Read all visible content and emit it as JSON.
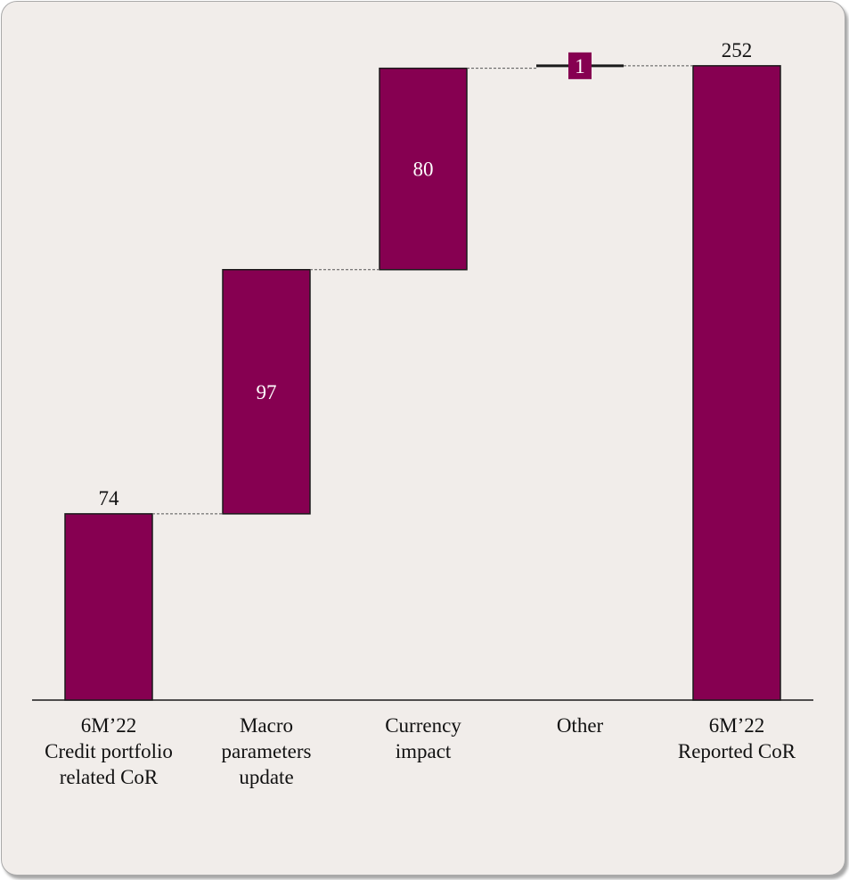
{
  "chart_data": {
    "type": "waterfall",
    "ylim": [
      0,
      268
    ],
    "grid": false,
    "colors": {
      "bar": "#860051",
      "background": "#f1edea",
      "connector": "#555555"
    },
    "items": [
      {
        "category_lines": [
          "6M’22",
          "Credit portfolio",
          "related CoR"
        ],
        "value": 74,
        "kind": "total",
        "label": "74",
        "label_position": "above"
      },
      {
        "category_lines": [
          "Macro",
          "parameters",
          "update"
        ],
        "value": 97,
        "kind": "delta",
        "label": "97",
        "label_position": "inside"
      },
      {
        "category_lines": [
          "Currency",
          "impact"
        ],
        "value": 80,
        "kind": "delta",
        "label": "80",
        "label_position": "inside"
      },
      {
        "category_lines": [
          "Other"
        ],
        "value": 1,
        "kind": "delta",
        "label": "1",
        "label_position": "badge"
      },
      {
        "category_lines": [
          "6M’22",
          "Reported CoR"
        ],
        "value": 252,
        "kind": "total",
        "label": "252",
        "label_position": "above"
      }
    ]
  }
}
